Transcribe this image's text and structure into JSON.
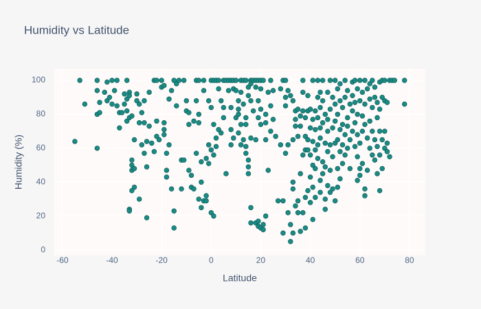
{
  "chart_data": {
    "type": "scatter",
    "title": "Humidity vs Latitude",
    "x_label": "Latitude",
    "y_label": "Humidity (%)",
    "color": "#1a8a83",
    "grid": true,
    "xlim": [
      -63.3,
      86.4
    ],
    "ylim": [
      -3.2,
      106.9
    ],
    "xticks": [
      -60,
      -40,
      -20,
      0,
      20,
      40,
      60,
      80
    ],
    "yticks": [
      0,
      20,
      40,
      60,
      80,
      100
    ],
    "x": [
      -55,
      -53,
      -51,
      -46,
      -46,
      -46,
      -45,
      -46,
      -45,
      -43,
      -42,
      -42,
      -41,
      -40,
      -40,
      -39,
      -38,
      -38,
      -37,
      -37,
      -36,
      -35,
      -35,
      -34,
      -34,
      -34,
      -34,
      -33,
      -33,
      -33,
      -33,
      -32,
      -32,
      -32,
      -32,
      -31,
      -31,
      -33,
      -31,
      -32,
      -30,
      -30,
      -29,
      -29,
      -29,
      -28,
      -28,
      -27,
      -27,
      -27,
      -26,
      -26,
      -26,
      -25,
      -25,
      -24,
      -23,
      -23,
      -22,
      -22,
      -22,
      -21,
      -20,
      -20,
      -19,
      -19,
      -19,
      -19,
      -18,
      -18,
      -18,
      -17,
      -17,
      -16,
      -16,
      -15,
      -15,
      -15,
      -14,
      -14,
      -13,
      -12,
      -12,
      -11,
      -11,
      -10,
      -10,
      -9,
      -9,
      -9,
      -8,
      -8,
      -7,
      -7,
      -6,
      -6,
      -6,
      -5,
      -5,
      -5,
      -5,
      -4,
      -4,
      -4,
      -3,
      -3,
      -3,
      -2,
      -2,
      -2,
      -1,
      -1,
      -1,
      0,
      0,
      0,
      0,
      1,
      1,
      1,
      1,
      2,
      2,
      2,
      3,
      3,
      3,
      4,
      4,
      5,
      5,
      5,
      6,
      6,
      7,
      7,
      8,
      8,
      8,
      8,
      9,
      9,
      9,
      10,
      10,
      10,
      11,
      11,
      11,
      11,
      12,
      12,
      12,
      12,
      13,
      13,
      13,
      14,
      14,
      14,
      14,
      14,
      15,
      15,
      15,
      15,
      15,
      16,
      16,
      16,
      16,
      16,
      16,
      17,
      17,
      18,
      18,
      18,
      18,
      19,
      19,
      19,
      19,
      19,
      20,
      20,
      20,
      20,
      20,
      21,
      21,
      21,
      22,
      22,
      22,
      22,
      23,
      23,
      24,
      24,
      24,
      25,
      25,
      26,
      27,
      28,
      28,
      29,
      29,
      29,
      30,
      30,
      30,
      30,
      31,
      31,
      31,
      32,
      32,
      32,
      33,
      33,
      33,
      33,
      33,
      34,
      34,
      34,
      34,
      35,
      35,
      35,
      35,
      36,
      36,
      36,
      36,
      37,
      37,
      37,
      37,
      37,
      38,
      38,
      38,
      38,
      38,
      39,
      39,
      39,
      39,
      39,
      40,
      40,
      40,
      40,
      40,
      41,
      41,
      41,
      41,
      41,
      41,
      42,
      42,
      42,
      42,
      42,
      43,
      43,
      43,
      43,
      43,
      44,
      44,
      44,
      44,
      44,
      44,
      45,
      45,
      45,
      45,
      45,
      46,
      46,
      46,
      46,
      46,
      47,
      47,
      47,
      47,
      47,
      48,
      48,
      48,
      48,
      48,
      49,
      49,
      49,
      49,
      50,
      50,
      50,
      50,
      50,
      51,
      51,
      51,
      51,
      51,
      52,
      52,
      52,
      52,
      52,
      53,
      53,
      53,
      53,
      54,
      54,
      54,
      54,
      55,
      55,
      55,
      55,
      56,
      56,
      56,
      57,
      57,
      57,
      57,
      58,
      58,
      58,
      58,
      59,
      59,
      59,
      59,
      59,
      60,
      60,
      60,
      60,
      60,
      61,
      61,
      61,
      61,
      62,
      62,
      62,
      62,
      62,
      63,
      63,
      63,
      64,
      64,
      64,
      64,
      65,
      65,
      65,
      65,
      66,
      66,
      66,
      66,
      67,
      67,
      67,
      67,
      68,
      68,
      68,
      68,
      68,
      69,
      69,
      69,
      69,
      70,
      70,
      70,
      70,
      71,
      71,
      71,
      72,
      72,
      73,
      74,
      78,
      78
    ],
    "values": [
      64,
      100,
      86,
      100,
      94,
      80,
      81,
      60,
      87,
      93,
      88,
      99,
      90,
      100,
      86,
      94,
      85,
      100,
      72,
      81,
      81,
      86,
      92,
      100,
      89,
      76,
      82,
      93,
      91,
      24,
      23,
      35,
      47,
      50,
      53,
      37,
      48,
      78,
      65,
      79,
      92,
      88,
      86,
      75,
      30,
      81,
      62,
      88,
      75,
      57,
      19,
      64,
      49,
      93,
      73,
      63,
      58,
      100,
      100,
      67,
      76,
      65,
      100,
      96,
      97,
      75,
      71,
      68,
      57,
      47,
      43,
      62,
      89,
      94,
      36,
      13,
      23,
      100,
      98,
      85,
      100,
      36,
      53,
      53,
      100,
      88,
      82,
      81,
      74,
      47,
      37,
      44,
      76,
      36,
      100,
      88,
      57,
      100,
      75,
      80,
      30,
      40,
      52,
      25,
      29,
      100,
      94,
      29,
      54,
      32,
      88,
      62,
      51,
      100,
      59,
      84,
      22,
      20,
      100,
      74,
      56,
      61,
      66,
      100,
      71,
      95,
      100,
      88,
      69,
      100,
      78,
      84,
      45,
      100,
      100,
      94,
      100,
      84,
      71,
      62,
      66,
      100,
      95,
      100,
      78,
      94,
      83,
      88,
      69,
      80,
      100,
      93,
      74,
      62,
      100,
      86,
      65,
      100,
      74,
      78,
      61,
      57,
      96,
      91,
      53,
      49,
      45,
      100,
      98,
      88,
      66,
      25,
      16,
      100,
      82,
      100,
      96,
      65,
      16,
      100,
      78,
      88,
      17,
      14,
      100,
      95,
      83,
      74,
      13,
      15,
      12,
      100,
      80,
      75,
      65,
      20,
      93,
      47,
      100,
      85,
      70,
      94,
      77,
      67,
      29,
      95,
      62,
      29,
      100,
      10,
      100,
      90,
      85,
      57,
      94,
      62,
      22,
      91,
      15,
      5,
      88,
      65,
      40,
      36,
      10,
      82,
      77,
      73,
      26,
      83,
      67,
      29,
      22,
      79,
      73,
      45,
      11,
      100,
      93,
      82,
      56,
      22,
      78,
      67,
      59,
      31,
      13,
      91,
      82,
      65,
      59,
      35,
      83,
      72,
      56,
      43,
      28,
      100,
      77,
      64,
      50,
      37,
      18,
      82,
      71,
      59,
      48,
      31,
      100,
      90,
      78,
      62,
      54,
      93,
      84,
      72,
      66,
      41,
      34,
      100,
      88,
      75,
      52,
      45,
      80,
      63,
      49,
      30,
      24,
      93,
      77,
      70,
      58,
      38,
      100,
      83,
      62,
      47,
      34,
      90,
      72,
      55,
      36,
      100,
      86,
      76,
      63,
      29,
      95,
      80,
      65,
      48,
      37,
      98,
      88,
      71,
      58,
      42,
      84,
      74,
      62,
      51,
      100,
      90,
      68,
      56,
      94,
      78,
      73,
      60,
      86,
      65,
      48,
      99,
      91,
      82,
      70,
      100,
      87,
      75,
      61,
      95,
      80,
      68,
      55,
      41,
      100,
      88,
      63,
      48,
      44,
      93,
      79,
      70,
      51,
      100,
      86,
      74,
      36,
      32,
      95,
      66,
      47,
      98,
      89,
      76,
      60,
      100,
      84,
      70,
      56,
      96,
      90,
      65,
      53,
      87,
      78,
      61,
      45,
      99,
      83,
      70,
      56,
      35,
      100,
      90,
      65,
      48,
      100,
      88,
      70,
      60,
      87,
      63,
      58,
      100,
      55,
      100,
      100,
      100,
      86
    ]
  }
}
